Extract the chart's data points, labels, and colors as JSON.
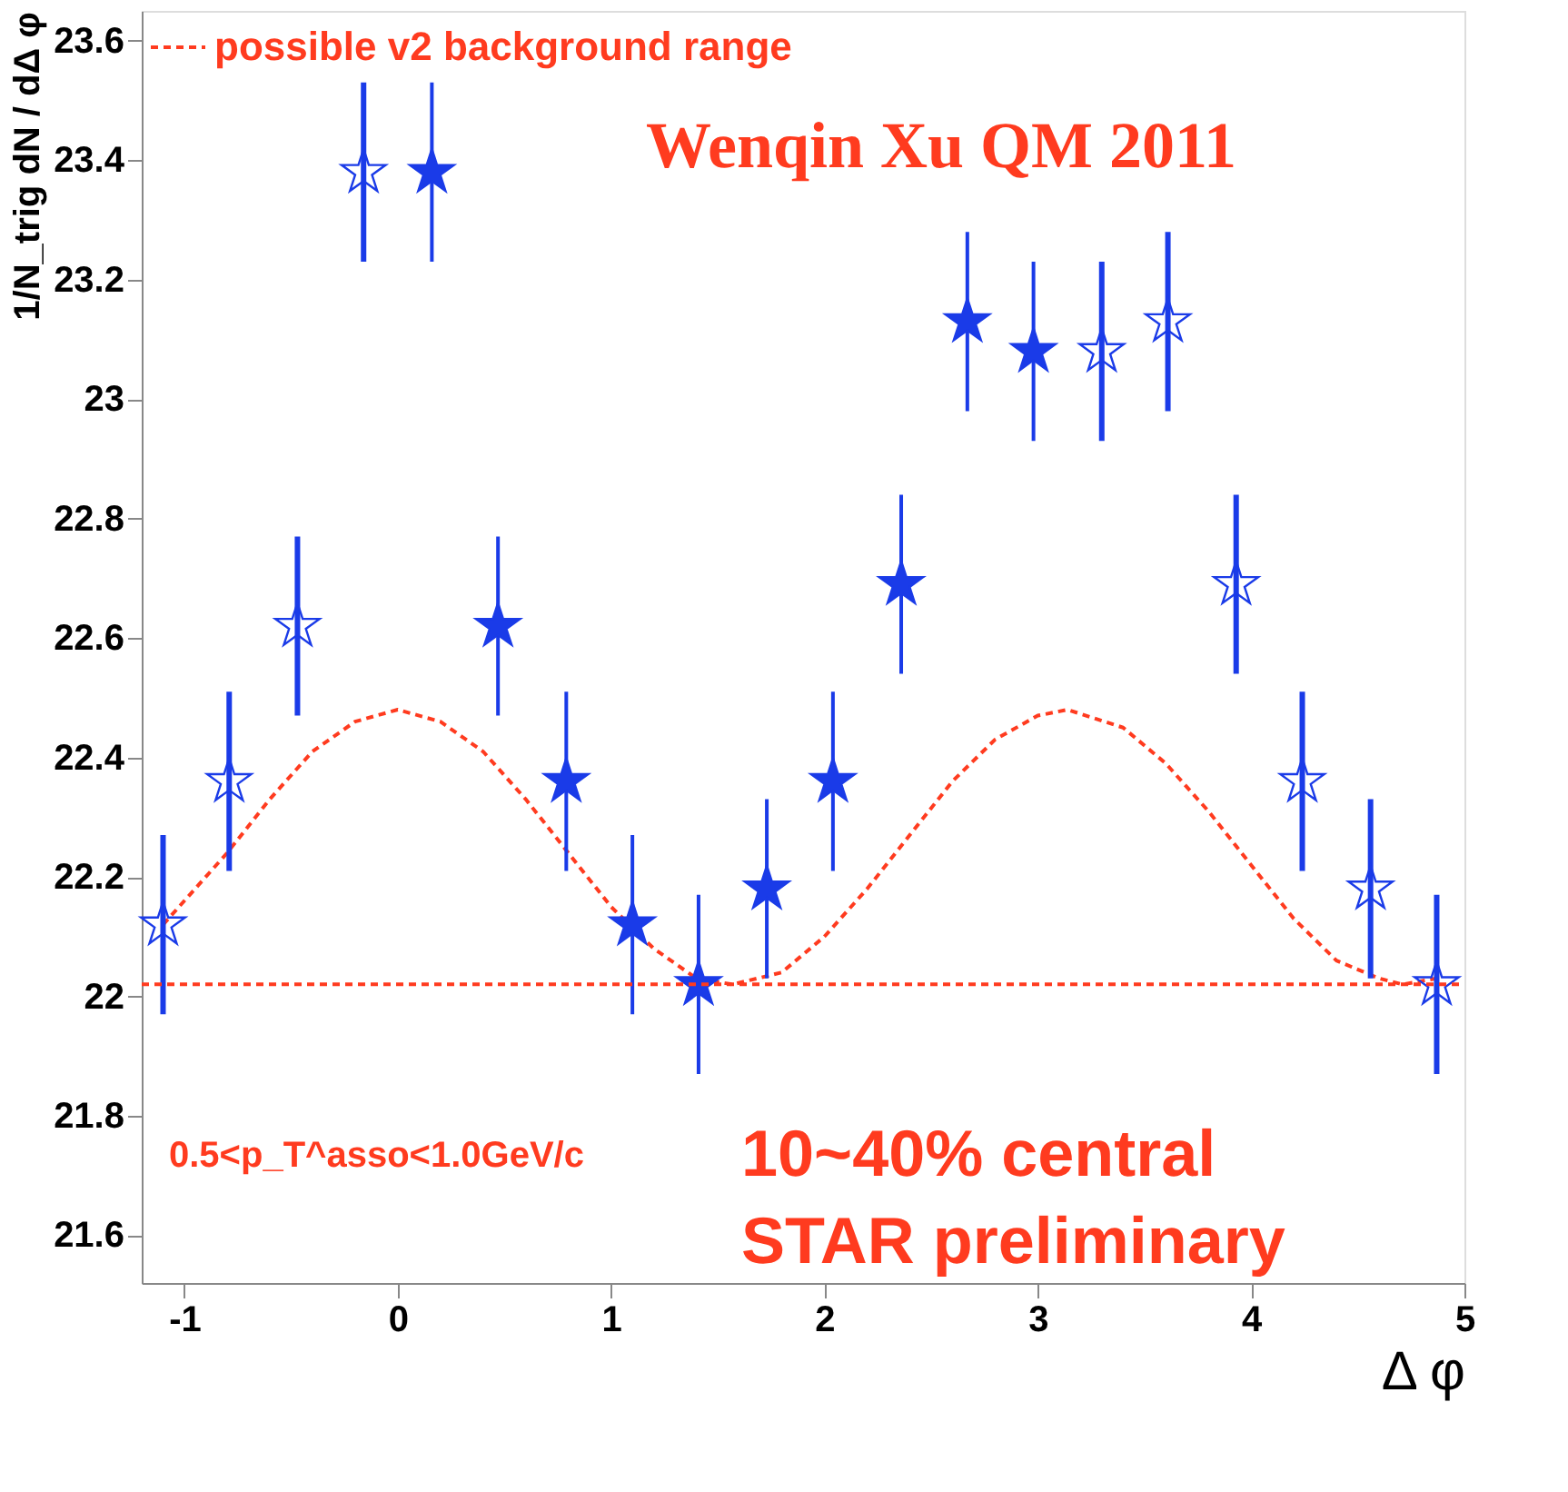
{
  "chart_data": {
    "type": "scatter",
    "xlabel": "Δ φ",
    "ylabel": "1/N_trig dN / dΔ φ",
    "xlim": [
      -1.2,
      5.0
    ],
    "ylim": [
      21.52,
      23.65
    ],
    "xticks": [
      -1,
      0,
      1,
      2,
      3,
      4,
      5
    ],
    "yticks": [
      21.6,
      21.8,
      22,
      22.2,
      22.4,
      22.6,
      22.8,
      23,
      23.2,
      23.4,
      23.6
    ],
    "grid": false,
    "legend": "top left",
    "series": [
      {
        "color": "#1a3be8",
        "marker": "star",
        "x": [
          -1.1,
          -0.79,
          -0.47,
          -0.16,
          3.3,
          3.61,
          3.93,
          4.24,
          4.56,
          4.87
        ],
        "values": [
          22.12,
          22.36,
          22.62,
          23.38,
          23.08,
          23.13,
          22.69,
          22.36,
          22.18,
          22.02
        ],
        "errors": [
          0.15,
          0.15,
          0.15,
          0.15,
          0.15,
          0.15,
          0.15,
          0.15,
          0.15,
          0.15
        ]
      },
      {
        "color": "#1a3be8",
        "marker": "star",
        "x": [
          0.16,
          0.47,
          0.79,
          1.1,
          1.41,
          1.73,
          2.04,
          2.36,
          2.67,
          2.98
        ],
        "values": [
          23.38,
          22.62,
          22.36,
          22.12,
          22.02,
          22.18,
          22.36,
          22.69,
          23.13,
          23.08
        ],
        "errors": [
          0.15,
          0.15,
          0.15,
          0.15,
          0.15,
          0.15,
          0.15,
          0.15,
          0.15,
          0.15
        ]
      },
      {
        "type": "line",
        "name": "possible v2 background range",
        "color": "#ff3b1f",
        "line_style": "dashed",
        "marker": "none",
        "x": [
          -1.1,
          -0.8,
          -0.6,
          -0.4,
          -0.2,
          0,
          0.2,
          0.4,
          0.6,
          0.8,
          1.0,
          1.2,
          1.4,
          1.57,
          1.8,
          2.0,
          2.2,
          2.4,
          2.6,
          2.8,
          3.0,
          3.14,
          3.4,
          3.6,
          3.8,
          4.0,
          4.2,
          4.4,
          4.6,
          4.71,
          4.87
        ],
        "values": [
          22.12,
          22.24,
          22.33,
          22.41,
          22.46,
          22.48,
          22.46,
          22.41,
          22.33,
          22.24,
          22.15,
          22.08,
          22.03,
          22.02,
          22.04,
          22.1,
          22.18,
          22.27,
          22.36,
          22.43,
          22.47,
          22.48,
          22.45,
          22.39,
          22.31,
          22.22,
          22.13,
          22.06,
          22.03,
          22.02,
          22.03
        ]
      }
    ],
    "ref_lines": [
      {
        "axis": "y",
        "value": 22.02,
        "label": null,
        "color": "#ff3b1f",
        "line_style": "dashed"
      }
    ],
    "annotations": [
      "Wenqin Xu QM 2011",
      "0.5<p_T^asso<1.0GeV/c",
      "10~40% central",
      "STAR preliminary"
    ]
  }
}
